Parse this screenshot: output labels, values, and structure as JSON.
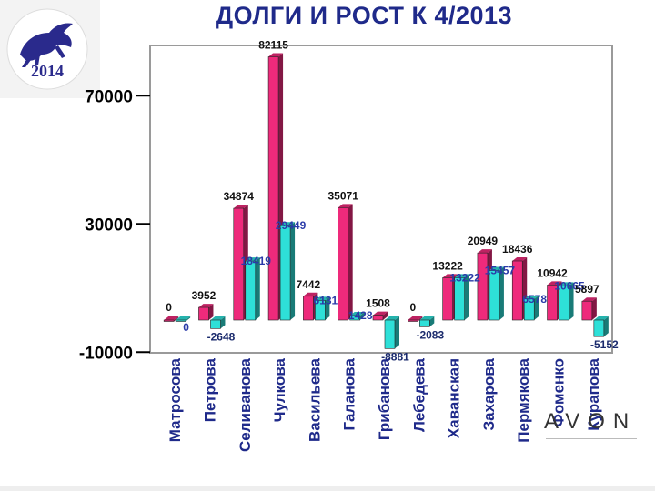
{
  "title": "ДОЛГИ И РОСТ К 4/2013",
  "logo": {
    "text": "2014",
    "icon": "horse-icon",
    "color": "#2a2a8c"
  },
  "brand": "AVON",
  "chart_data": {
    "type": "bar",
    "categories": [
      "Матросова",
      "Петрова",
      "Селиванова",
      "Чулкова",
      "Васильева",
      "Галанова",
      "Грибанова",
      "Лебедева",
      "Хаванская",
      "Захарова",
      "Пермякова",
      "Фоменко",
      "Курапова"
    ],
    "series": [
      {
        "values": [
          0,
          3952,
          34874,
          82115,
          7442,
          35071,
          1508,
          0,
          13222,
          20949,
          18436,
          10942,
          5897
        ],
        "color": "#ee2a7b"
      },
      {
        "values": [
          0,
          -2648,
          18419,
          29449,
          6131,
          1428,
          -8881,
          -2083,
          13222,
          15457,
          6578,
          10665,
          -5152
        ],
        "color": "#2ee0d8"
      }
    ],
    "data_labels_series1": [
      "0",
      "3952",
      "34874",
      "82115",
      "7442",
      "35071",
      "1508",
      "0",
      "13222",
      "20949",
      "18436",
      "10942",
      "5897"
    ],
    "data_labels_series2": [
      "0",
      "-2648",
      "18419",
      "29449",
      "6131",
      "1428",
      "-8881",
      "-2083",
      "13222",
      "15457",
      "6578",
      "10665",
      "-5152"
    ],
    "yticks": [
      "70000",
      "30000",
      "-10000"
    ],
    "ylim": [
      -10000,
      85000
    ],
    "grid": false,
    "legend": "none"
  }
}
